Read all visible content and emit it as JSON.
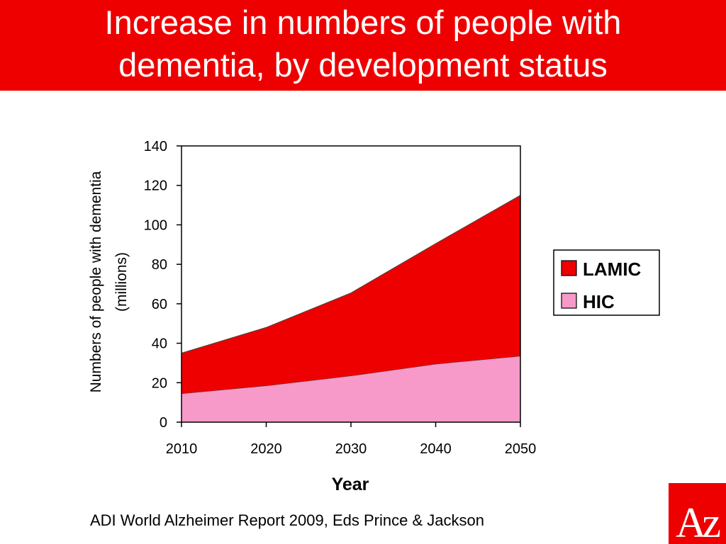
{
  "slide": {
    "title_line1": "Increase in numbers of people with",
    "title_line2": "dementia, by development status",
    "source": "ADI World Alzheimer Report 2009, Eds Prince & Jackson",
    "logo_text": "Az"
  },
  "colors": {
    "title_bar": "#ee0000",
    "lamic": "#ee0000",
    "hic": "#f799c9"
  },
  "chart_data": {
    "type": "area",
    "stacked": true,
    "x": [
      2010,
      2020,
      2030,
      2040,
      2050
    ],
    "series": [
      {
        "name": "HIC",
        "values": [
          14.5,
          18.5,
          23.5,
          29.5,
          33.5
        ]
      },
      {
        "name": "LAMIC",
        "values": [
          20.5,
          29.5,
          42,
          61,
          81.5
        ]
      }
    ],
    "xlabel": "Year",
    "ylabel_line1": "Numbers of people with dementia",
    "ylabel_line2": "(millions)",
    "ylim": [
      0,
      140
    ],
    "yticks": [
      0,
      20,
      40,
      60,
      80,
      100,
      120,
      140
    ],
    "xticks": [
      "2010",
      "2020",
      "2030",
      "2040",
      "2050"
    ],
    "legend": {
      "position": "right",
      "entries": [
        "LAMIC",
        "HIC"
      ]
    },
    "grid": false
  }
}
